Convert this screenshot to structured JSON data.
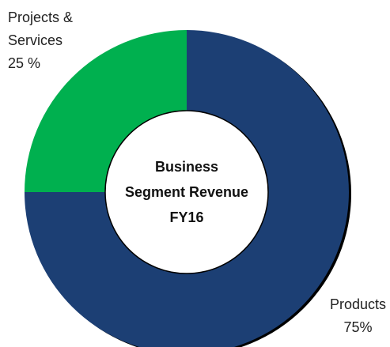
{
  "chart_data": {
    "type": "donut",
    "title": "Business\nSegment Revenue\nFY16",
    "categories": [
      "Products",
      "Projects &\nServices"
    ],
    "values": [
      75,
      25
    ],
    "value_labels": [
      "75%",
      "25 %"
    ],
    "colors": [
      "#1c3f74",
      "#00b04f"
    ]
  }
}
